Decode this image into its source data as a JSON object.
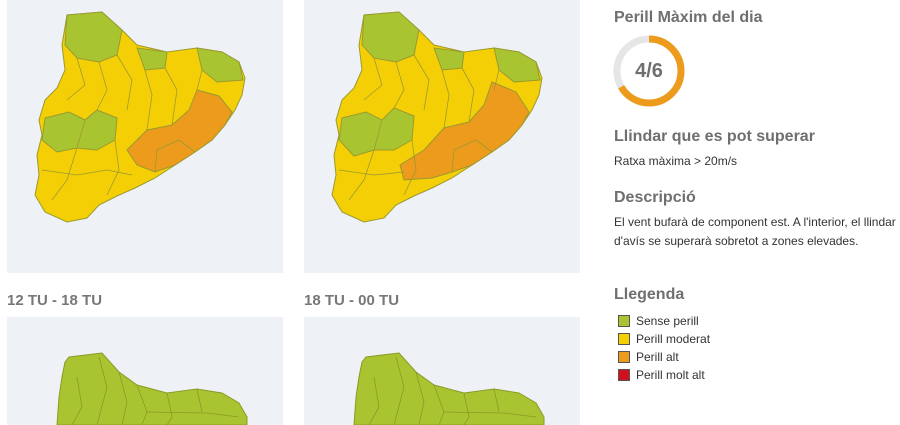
{
  "periods": [
    {
      "label": ""
    },
    {
      "label": ""
    },
    {
      "label": "12 TU - 18 TU"
    },
    {
      "label": "18 TU - 00 TU"
    }
  ],
  "sidebar": {
    "max_title": "Perill Màxim del dia",
    "max_value_text": "4/6",
    "max_level": 4,
    "max_scale": 6,
    "threshold_title": "Llindar que es pot superar",
    "threshold_text": "Ratxa màxima > 20m/s",
    "desc_title": "Descripció",
    "desc_text": "El vent bufarà de component est. A l'interior, el llindar d'avís se superarà sobretot a zones elevades.",
    "legend_title": "Llegenda",
    "legend": [
      {
        "label": "Sense perill",
        "color": "#a8c531"
      },
      {
        "label": "Perill moderat",
        "color": "#f5cf05"
      },
      {
        "label": "Perill alt",
        "color": "#ed9b1c"
      },
      {
        "label": "Perill molt alt",
        "color": "#d0101c"
      }
    ]
  },
  "colors": {
    "green": "#a8c531",
    "yellow": "#f5cf05",
    "orange": "#ed9b1c",
    "gauge_track": "#e6e6e6",
    "gauge_fill": "#ed9b1c"
  }
}
